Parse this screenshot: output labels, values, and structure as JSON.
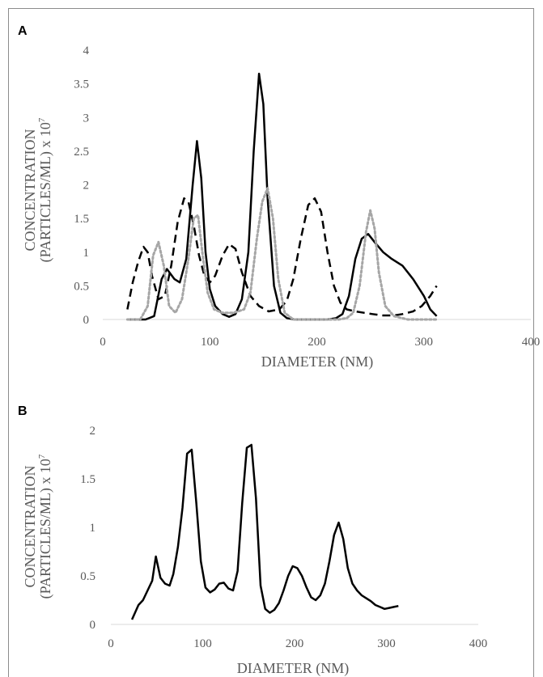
{
  "chart_data": [
    {
      "type": "line",
      "panel_label": "A",
      "xlabel": "DIAMETER (NM)",
      "ylabel_line1": "CONCENTRATION",
      "ylabel_line2": "(PARTICLES/ML) x 10",
      "ylabel_exp": "7",
      "xlim": [
        0,
        400
      ],
      "ylim": [
        0,
        4
      ],
      "x_ticks": [
        "0",
        "100",
        "200",
        "300",
        "400"
      ],
      "y_ticks": [
        "0",
        "0.5",
        "1",
        "1.5",
        "2",
        "2.5",
        "3",
        "3.5",
        "4"
      ],
      "grid": false,
      "legend": "none",
      "series": [
        {
          "style": "solid",
          "color": "#000000",
          "x": [
            23,
            30,
            40,
            48,
            55,
            60,
            67,
            72,
            78,
            84,
            88,
            92,
            96,
            100,
            105,
            112,
            118,
            124,
            130,
            136,
            141,
            146,
            150,
            154,
            160,
            166,
            172,
            180,
            190,
            200,
            210,
            218,
            224,
            230,
            236,
            242,
            248,
            254,
            262,
            270,
            280,
            290,
            300,
            306,
            312
          ],
          "y": [
            0,
            0,
            0,
            0.05,
            0.6,
            0.75,
            0.6,
            0.55,
            0.9,
            2.0,
            2.65,
            2.1,
            1.0,
            0.45,
            0.2,
            0.08,
            0.04,
            0.08,
            0.3,
            1.0,
            2.5,
            3.65,
            3.2,
            1.8,
            0.5,
            0.1,
            0.02,
            0,
            0,
            0,
            0,
            0.02,
            0.08,
            0.35,
            0.9,
            1.2,
            1.27,
            1.15,
            1.0,
            0.9,
            0.8,
            0.6,
            0.35,
            0.15,
            0.05
          ]
        },
        {
          "style": "dashed",
          "color": "#000000",
          "x": [
            23,
            28,
            33,
            38,
            42,
            46,
            52,
            58,
            64,
            70,
            76,
            80,
            85,
            90,
            95,
            100,
            105,
            112,
            118,
            124,
            130,
            138,
            146,
            155,
            165,
            172,
            178,
            185,
            192,
            198,
            204,
            210,
            216,
            222,
            228,
            236,
            244,
            252,
            262,
            272,
            280,
            290,
            298,
            306,
            312
          ],
          "y": [
            0.15,
            0.55,
            0.85,
            1.08,
            1.0,
            0.65,
            0.3,
            0.35,
            0.8,
            1.45,
            1.8,
            1.75,
            1.4,
            0.95,
            0.65,
            0.55,
            0.65,
            0.95,
            1.12,
            1.05,
            0.7,
            0.35,
            0.2,
            0.12,
            0.15,
            0.28,
            0.6,
            1.2,
            1.7,
            1.8,
            1.6,
            1.0,
            0.5,
            0.25,
            0.15,
            0.12,
            0.1,
            0.08,
            0.06,
            0.06,
            0.08,
            0.12,
            0.2,
            0.35,
            0.5
          ]
        },
        {
          "style": "dotted",
          "color": "#a6a6a6",
          "x": [
            23,
            35,
            42,
            47,
            52,
            57,
            62,
            68,
            74,
            80,
            85,
            89,
            93,
            98,
            104,
            112,
            122,
            132,
            138,
            144,
            149,
            154,
            159,
            164,
            170,
            178,
            190,
            200,
            210,
            220,
            228,
            234,
            240,
            246,
            250,
            254,
            258,
            264,
            272,
            285,
            300,
            312
          ],
          "y": [
            0,
            0,
            0.2,
            0.95,
            1.15,
            0.8,
            0.2,
            0.1,
            0.3,
            0.9,
            1.5,
            1.55,
            1.0,
            0.4,
            0.15,
            0.1,
            0.1,
            0.15,
            0.4,
            1.2,
            1.75,
            1.95,
            1.5,
            0.6,
            0.1,
            0,
            0,
            0,
            0,
            0,
            0.02,
            0.1,
            0.5,
            1.3,
            1.62,
            1.35,
            0.7,
            0.2,
            0.05,
            0,
            0,
            0
          ]
        }
      ]
    },
    {
      "type": "line",
      "panel_label": "B",
      "xlabel": "DIAMETER (NM)",
      "ylabel_line1": "CONCENTRATION",
      "ylabel_line2": "(PARTICLES/ML) x 10",
      "ylabel_exp": "7",
      "xlim": [
        0,
        400
      ],
      "ylim": [
        0,
        2
      ],
      "x_ticks": [
        "0",
        "100",
        "200",
        "300",
        "400"
      ],
      "y_ticks": [
        "0",
        "0.5",
        "1",
        "1.5",
        "2"
      ],
      "grid": false,
      "legend": "none",
      "series": [
        {
          "style": "solid",
          "color": "#000000",
          "x": [
            23,
            30,
            35,
            40,
            45,
            49,
            54,
            59,
            64,
            68,
            73,
            78,
            83,
            88,
            93,
            98,
            103,
            108,
            113,
            118,
            123,
            128,
            133,
            138,
            143,
            148,
            153,
            158,
            163,
            168,
            173,
            178,
            183,
            188,
            193,
            198,
            203,
            208,
            213,
            218,
            223,
            228,
            233,
            238,
            243,
            248,
            253,
            258,
            263,
            268,
            273,
            278,
            283,
            288,
            293,
            298,
            303,
            308,
            313
          ],
          "y": [
            0.05,
            0.2,
            0.25,
            0.35,
            0.45,
            0.7,
            0.48,
            0.42,
            0.4,
            0.52,
            0.8,
            1.2,
            1.76,
            1.8,
            1.25,
            0.65,
            0.38,
            0.33,
            0.36,
            0.42,
            0.43,
            0.37,
            0.35,
            0.55,
            1.25,
            1.82,
            1.85,
            1.3,
            0.4,
            0.16,
            0.12,
            0.15,
            0.22,
            0.35,
            0.5,
            0.6,
            0.58,
            0.5,
            0.38,
            0.28,
            0.25,
            0.3,
            0.42,
            0.65,
            0.92,
            1.05,
            0.88,
            0.58,
            0.42,
            0.35,
            0.3,
            0.27,
            0.24,
            0.2,
            0.18,
            0.16,
            0.17,
            0.18,
            0.19
          ]
        }
      ]
    }
  ]
}
